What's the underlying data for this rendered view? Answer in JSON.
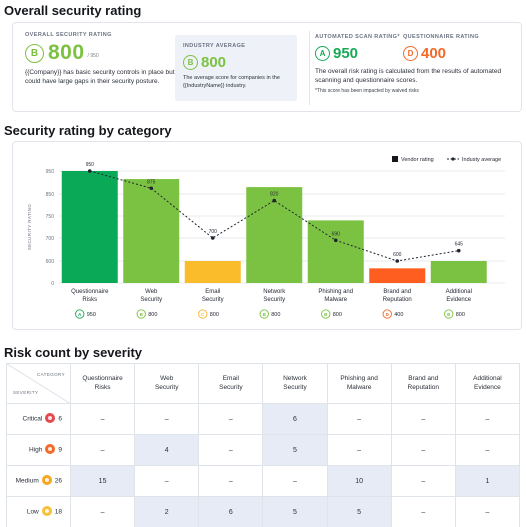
{
  "overall": {
    "heading": "Overall security rating",
    "rating_label": "OVERALL SECURITY RATING",
    "grade": "B",
    "score": "800",
    "out_of": "/ 950",
    "description": "{{Company}} has basic security controls in place but could have large gaps in their security posture.",
    "industry": {
      "label": "INDUSTRY AVERAGE",
      "grade": "B",
      "score": "800",
      "description": "The average score for companies in the {{IndustryName}} industry."
    },
    "automated": {
      "label": "AUTOMATED SCAN RATING*",
      "grade": "A",
      "score": "950"
    },
    "questionnaire": {
      "label": "QUESTIONNAIRE RATING",
      "grade": "D",
      "score": "400"
    },
    "risk_description": "The overall risk rating is calculated from the results of automated scanning and questionnaire scores.",
    "note": "*This score has been impacted by waived risks"
  },
  "category_section": {
    "heading": "Security rating by category"
  },
  "chart_data": {
    "type": "bar",
    "categories": [
      "Questionnaire Risks",
      "Web Security",
      "Email Security",
      "Network Security",
      "Phishing and Malware",
      "Brand and Reputation",
      "Additional Evidence"
    ],
    "category_lines": [
      [
        "Questionnaire",
        "Risks"
      ],
      [
        "Web",
        "Security"
      ],
      [
        "Email",
        "Security"
      ],
      [
        "Network",
        "Security"
      ],
      [
        "Phishing and",
        "Malware"
      ],
      [
        "Brand and",
        "Reputation"
      ],
      [
        "Additional",
        "Evidence"
      ]
    ],
    "series": [
      {
        "name": "Vendor rating",
        "values": [
          950,
          915,
          600,
          880,
          740,
          400,
          600
        ]
      },
      {
        "name": "Industy average",
        "values": [
          950,
          875,
          700,
          820,
          690,
          600,
          645
        ]
      }
    ],
    "bar_colors": [
      "#0aa957",
      "#7cc242",
      "#fbbc2c",
      "#7cc242",
      "#7cc242",
      "#fe5f20",
      "#7cc242"
    ],
    "grades": [
      "A",
      "B",
      "C",
      "B",
      "B",
      "D",
      "B"
    ],
    "grade_scores": [
      "950",
      "800",
      "800",
      "800",
      "800",
      "400",
      "800"
    ],
    "grade_colors": [
      "#18a957",
      "#7cc242",
      "#f5b731",
      "#7cc242",
      "#7cc242",
      "#f26a2a",
      "#7cc242"
    ],
    "ylabel": "SECURITY RATING",
    "yticks": [
      "950",
      "850",
      "750",
      "700",
      "600",
      "0"
    ],
    "ylim": [
      0,
      950
    ],
    "legend_position": "top-right",
    "grid": true
  },
  "risk_section": {
    "heading": "Risk count by severity",
    "corner_category": "CATEGORY",
    "corner_severity": "SEVERITY",
    "columns": [
      {
        "l1": "Questionnaire",
        "l2": "Risks"
      },
      {
        "l1": "Web",
        "l2": "Security"
      },
      {
        "l1": "Email",
        "l2": "Security"
      },
      {
        "l1": "Network",
        "l2": "Security"
      },
      {
        "l1": "Phishing and",
        "l2": "Malware"
      },
      {
        "l1": "Brand and",
        "l2": "Reputation"
      },
      {
        "l1": "Additional",
        "l2": "Evidence"
      }
    ],
    "rows": [
      {
        "label": "Critical",
        "count": "6",
        "color": "#e5484d",
        "cells": [
          "–",
          "–",
          "–",
          "6",
          "–",
          "–",
          "–"
        ]
      },
      {
        "label": "High",
        "count": "9",
        "color": "#f26a2a",
        "cells": [
          "–",
          "4",
          "–",
          "5",
          "–",
          "–",
          "–"
        ]
      },
      {
        "label": "Medium",
        "count": "26",
        "color": "#f5a623",
        "cells": [
          "15",
          "–",
          "–",
          "–",
          "10",
          "–",
          "1"
        ]
      },
      {
        "label": "Low",
        "count": "18",
        "color": "#f8c03a",
        "cells": [
          "–",
          "2",
          "6",
          "5",
          "5",
          "–",
          "–"
        ]
      }
    ]
  }
}
